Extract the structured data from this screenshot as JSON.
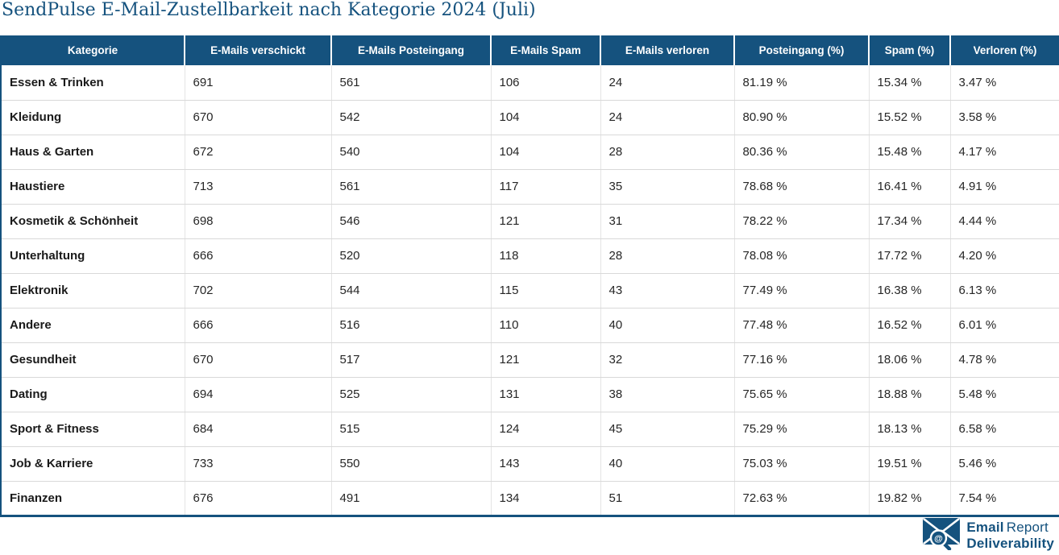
{
  "page": {
    "title": "SendPulse E-Mail-Zustellbarkeit nach Kategorie 2024 (Juli)"
  },
  "colors": {
    "accent": "#15527E",
    "header_bg": "#15527E",
    "header_text": "#FFFFFF",
    "row_separator": "#D9D9D9",
    "body_text": "#262626",
    "category_text": "#1A1A1A"
  },
  "chart_data": {
    "type": "table",
    "title": "SendPulse E-Mail-Zustellbarkeit nach Kategorie 2024 (Juli)",
    "columns": [
      "Kategorie",
      "E-Mails verschickt",
      "E-Mails Posteingang",
      "E-Mails Spam",
      "E-Mails verloren",
      "Posteingang (%)",
      "Spam (%)",
      "Verloren (%)"
    ],
    "rows": [
      [
        "Essen & Trinken",
        "691",
        "561",
        "106",
        "24",
        "81.19 %",
        "15.34 %",
        "3.47 %"
      ],
      [
        "Kleidung",
        "670",
        "542",
        "104",
        "24",
        "80.90 %",
        "15.52 %",
        "3.58 %"
      ],
      [
        "Haus & Garten",
        "672",
        "540",
        "104",
        "28",
        "80.36 %",
        "15.48 %",
        "4.17 %"
      ],
      [
        "Haustiere",
        "713",
        "561",
        "117",
        "35",
        "78.68 %",
        "16.41 %",
        "4.91 %"
      ],
      [
        "Kosmetik & Schönheit",
        "698",
        "546",
        "121",
        "31",
        "78.22 %",
        "17.34 %",
        "4.44 %"
      ],
      [
        "Unterhaltung",
        "666",
        "520",
        "118",
        "28",
        "78.08 %",
        "17.72 %",
        "4.20 %"
      ],
      [
        "Elektronik",
        "702",
        "544",
        "115",
        "43",
        "77.49 %",
        "16.38 %",
        "6.13 %"
      ],
      [
        "Andere",
        "666",
        "516",
        "110",
        "40",
        "77.48 %",
        "16.52 %",
        "6.01 %"
      ],
      [
        "Gesundheit",
        "670",
        "517",
        "121",
        "32",
        "77.16 %",
        "18.06 %",
        "4.78 %"
      ],
      [
        "Dating",
        "694",
        "525",
        "131",
        "38",
        "75.65 %",
        "18.88 %",
        "5.48 %"
      ],
      [
        "Sport & Fitness",
        "684",
        "515",
        "124",
        "45",
        "75.29 %",
        "18.13 %",
        "6.58 %"
      ],
      [
        "Job & Karriere",
        "733",
        "550",
        "143",
        "40",
        "75.03 %",
        "19.51 %",
        "5.46 %"
      ],
      [
        "Finanzen",
        "676",
        "491",
        "134",
        "51",
        "72.63 %",
        "19.82 %",
        "7.54 %"
      ]
    ]
  },
  "footer": {
    "brand_line1_bold": "Email",
    "brand_line1_rest": "Report",
    "brand_line2": "Deliverability"
  }
}
